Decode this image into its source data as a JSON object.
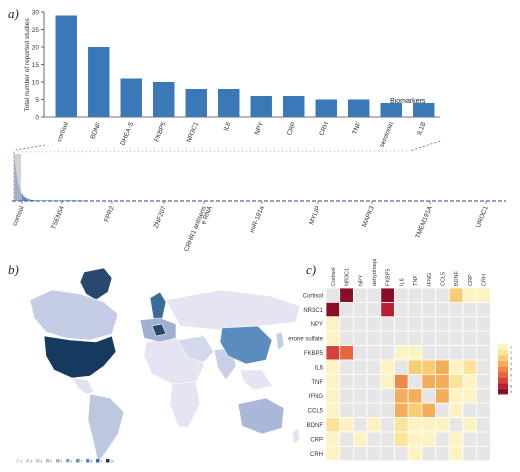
{
  "panels": {
    "a": "a)",
    "b": "b)",
    "c": "c)"
  },
  "chart_data": [
    {
      "type": "bar",
      "panel": "a-top",
      "ylabel": "Total number of reported studies",
      "xlabel": "Biomarkers",
      "ylim": [
        0,
        30
      ],
      "yticks": [
        0,
        5,
        10,
        15,
        20,
        25,
        30
      ],
      "categories": [
        "cortisol",
        "BDNF",
        "DHEA-S",
        "FKBP5",
        "NR3C1",
        "IL6",
        "NPY",
        "CRP",
        "CRH",
        "TNF",
        "serotonin",
        "IL1B"
      ],
      "values": [
        29,
        20,
        11,
        10,
        8,
        8,
        6,
        6,
        5,
        5,
        4,
        4
      ],
      "bar_color": "#3a78b8"
    },
    {
      "type": "bar",
      "panel": "a-overview",
      "tick_labels": [
        "cortisol",
        "TSEN54",
        "FPR2",
        "ZNF207",
        "CRHR1 antisense RNA",
        "miR-181a",
        "MYLIP",
        "MAPK3",
        "TMEM191A",
        "UROC1"
      ],
      "bar_color": "#3a78b8",
      "highlight_color": "#c8c8c8"
    },
    {
      "type": "map",
      "panel": "b",
      "legend_ticks": [
        "1",
        "2",
        "3",
        "4",
        "5",
        "6",
        "7",
        "8",
        "9",
        "10"
      ],
      "highlighted_regions": [
        {
          "region": "USA",
          "level": 10
        },
        {
          "region": "Greenland",
          "level": 9
        },
        {
          "region": "Canada",
          "level": 3
        },
        {
          "region": "Scandinavia",
          "level": 6
        },
        {
          "region": "Central Europe",
          "level": 8
        },
        {
          "region": "China",
          "level": 6
        },
        {
          "region": "Brazil",
          "level": 3
        },
        {
          "region": "Australia",
          "level": 3
        }
      ],
      "colors": {
        "low": "#e4e4f2",
        "high": "#163a5f",
        "no_data": "#ebebeb"
      }
    },
    {
      "type": "heatmap",
      "panel": "c",
      "columns": [
        "Cortisol",
        "NR3C1",
        "NPY",
        "dehydroepi",
        "FKBP5",
        "IL6",
        "TNF",
        "IFNG",
        "CCL5",
        "BDNF",
        "CRP",
        "CRH"
      ],
      "rows": [
        "Cortisol",
        "NR3C1",
        "NPY",
        "erone sulfate",
        "FKBP5",
        "IL6",
        "TNF",
        "IFNG",
        "CCL5",
        "BDNF",
        "CRP",
        "CRH"
      ],
      "values": [
        [
          0,
          9,
          0,
          0,
          9,
          0,
          0,
          0,
          0,
          3,
          1,
          1
        ],
        [
          9,
          0,
          0,
          0,
          8,
          0,
          0,
          0,
          0,
          0,
          0,
          0
        ],
        [
          1,
          0,
          0,
          0,
          0,
          0,
          0,
          0,
          0,
          0,
          0,
          0
        ],
        [
          1,
          0,
          0,
          0,
          0,
          0,
          0,
          0,
          0,
          0,
          0,
          0
        ],
        [
          7,
          6,
          0,
          0,
          0,
          1,
          1,
          0,
          0,
          0,
          0,
          0
        ],
        [
          1,
          0,
          0,
          0,
          1,
          0,
          3,
          3,
          4,
          1,
          2,
          0
        ],
        [
          1,
          0,
          0,
          0,
          1,
          5,
          0,
          4,
          4,
          2,
          1,
          0
        ],
        [
          1,
          0,
          0,
          0,
          0,
          4,
          4,
          0,
          4,
          1,
          1,
          0
        ],
        [
          1,
          0,
          0,
          0,
          0,
          4,
          3,
          4,
          0,
          1,
          0,
          0
        ],
        [
          2,
          1,
          0,
          1,
          0,
          2,
          1,
          1,
          1,
          0,
          1,
          0
        ],
        [
          1,
          0,
          1,
          0,
          0,
          2,
          1,
          1,
          0,
          1,
          0,
          0
        ],
        [
          1,
          0,
          0,
          0,
          0,
          0,
          1,
          0,
          0,
          1,
          0,
          0
        ]
      ],
      "legend_ticks": [
        "1",
        "2",
        "3",
        "4",
        "5",
        "6",
        "7",
        "8",
        "9"
      ],
      "legend_colors": [
        "#fdf3c2",
        "#fbe39a",
        "#f8cc74",
        "#f4ad58",
        "#ef8b48",
        "#e76540",
        "#d6423a",
        "#b81f33",
        "#8a0d2a"
      ],
      "zero_color": "#e6e6e6"
    }
  ]
}
